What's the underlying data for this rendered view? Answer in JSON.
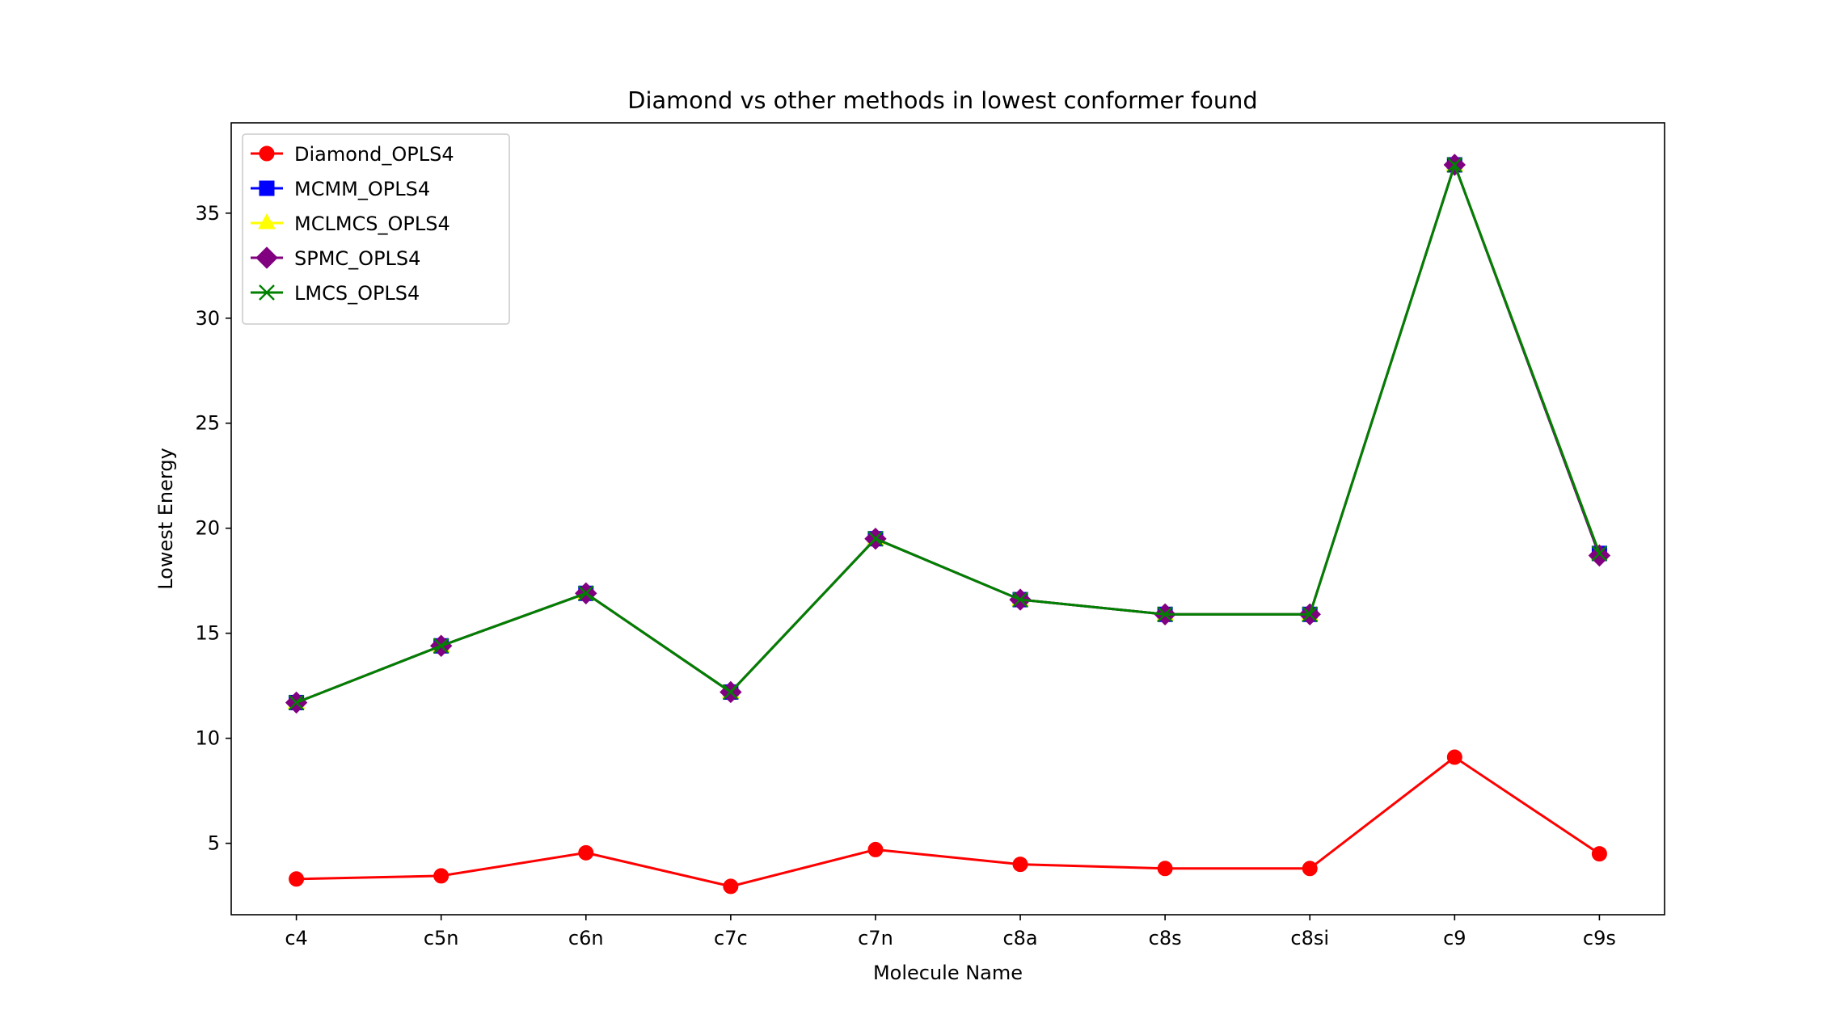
{
  "chart_data": {
    "type": "line",
    "title": "Diamond vs other methods in lowest conformer found",
    "xlabel": "Molecule Name",
    "ylabel": "Lowest Energy",
    "categories": [
      "c4",
      "c5n",
      "c6n",
      "c7c",
      "c7n",
      "c8a",
      "c8s",
      "c8si",
      "c9",
      "c9s"
    ],
    "yticks": [
      5,
      10,
      15,
      20,
      25,
      30,
      35
    ],
    "ylim": [
      1.6,
      39.3
    ],
    "grid": false,
    "legend_position": "top-left",
    "series": [
      {
        "name": "Diamond_OPLS4",
        "color": "#ff0000",
        "marker": "circle",
        "values": [
          3.3,
          3.45,
          4.55,
          2.95,
          4.7,
          4.0,
          3.8,
          3.8,
          9.1,
          4.5
        ]
      },
      {
        "name": "MCMM_OPLS4",
        "color": "#0000ff",
        "marker": "square",
        "values": [
          11.7,
          14.4,
          16.9,
          12.2,
          19.5,
          16.6,
          15.9,
          15.9,
          37.3,
          18.8
        ]
      },
      {
        "name": "MCLMCS_OPLS4",
        "color": "#ffff00",
        "marker": "triangle",
        "values": [
          11.7,
          14.4,
          16.9,
          12.2,
          19.5,
          16.6,
          15.9,
          15.9,
          37.3,
          18.8
        ]
      },
      {
        "name": "SPMC_OPLS4",
        "color": "#800080",
        "marker": "diamond",
        "values": [
          11.7,
          14.4,
          16.9,
          12.2,
          19.5,
          16.6,
          15.9,
          15.9,
          37.3,
          18.7
        ]
      },
      {
        "name": "LMCS_OPLS4",
        "color": "#008000",
        "marker": "x",
        "values": [
          11.7,
          14.4,
          16.9,
          12.2,
          19.5,
          16.6,
          15.9,
          15.9,
          37.3,
          18.8
        ]
      }
    ]
  }
}
